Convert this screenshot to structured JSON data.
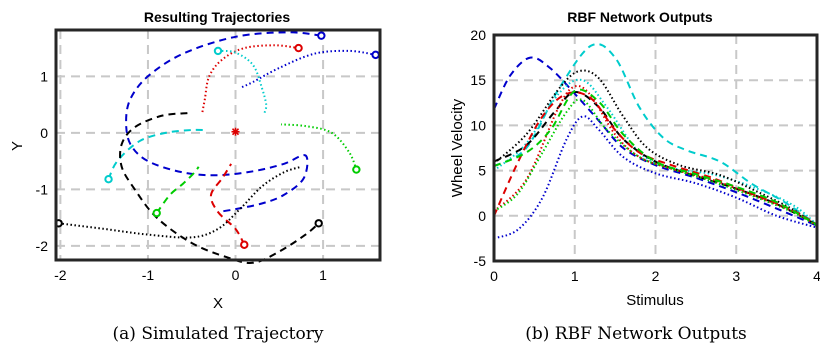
{
  "captions": {
    "a": "(a) Simulated Trajectory",
    "b": "(b) RBF Network Outputs"
  },
  "chart_data": [
    {
      "type": "line",
      "title": "Resulting Trajectories",
      "xlabel": "X",
      "ylabel": "Y",
      "xlim": [
        -2.05,
        1.65
      ],
      "ylim": [
        -2.25,
        1.82
      ],
      "xticks": [
        -2,
        -1,
        0,
        1
      ],
      "yticks": [
        -2,
        -1,
        0,
        1
      ],
      "grid": true,
      "center_marker": [
        0,
        0.02
      ],
      "series": [
        {
          "color": "#0000cc",
          "style": "dashed",
          "points": [
            [
              0.98,
              1.72
            ],
            [
              0.6,
              1.78
            ],
            [
              0.0,
              1.7
            ],
            [
              -0.6,
              1.4
            ],
            [
              -1.0,
              1.0
            ],
            [
              -1.2,
              0.6
            ],
            [
              -1.25,
              0.2
            ],
            [
              -1.2,
              -0.2
            ],
            [
              -1.0,
              -0.5
            ],
            [
              -0.6,
              -0.7
            ],
            [
              -0.2,
              -0.75
            ],
            [
              0.2,
              -0.68
            ],
            [
              0.55,
              -0.55
            ],
            [
              0.8,
              -0.4
            ],
            [
              0.78,
              -0.8
            ],
            [
              0.55,
              -1.1
            ],
            [
              0.3,
              -1.25
            ],
            [
              0.0,
              -1.35
            ],
            [
              -0.2,
              -1.4
            ]
          ],
          "end": "start"
        },
        {
          "color": "#0000cc",
          "style": "dotted",
          "points": [
            [
              1.6,
              1.38
            ],
            [
              1.3,
              1.45
            ],
            [
              0.9,
              1.4
            ],
            [
              0.5,
              1.15
            ],
            [
              0.2,
              0.9
            ],
            [
              0.06,
              0.8
            ]
          ],
          "end": "start"
        },
        {
          "color": "#dd0000",
          "style": "dotted",
          "points": [
            [
              0.72,
              1.5
            ],
            [
              0.45,
              1.55
            ],
            [
              0.1,
              1.5
            ],
            [
              -0.15,
              1.3
            ],
            [
              -0.3,
              1.0
            ],
            [
              -0.35,
              0.6
            ],
            [
              -0.38,
              0.35
            ]
          ],
          "end": "start"
        },
        {
          "color": "#dd0000",
          "style": "dashed",
          "points": [
            [
              0.1,
              -1.98
            ],
            [
              0.0,
              -1.7
            ],
            [
              -0.2,
              -1.4
            ],
            [
              -0.28,
              -1.1
            ],
            [
              -0.15,
              -0.8
            ],
            [
              -0.05,
              -0.55
            ]
          ],
          "end": "start"
        },
        {
          "color": "#00cccc",
          "style": "dotted",
          "points": [
            [
              -0.2,
              1.45
            ],
            [
              0.0,
              1.42
            ],
            [
              0.2,
              1.2
            ],
            [
              0.3,
              0.8
            ],
            [
              0.35,
              0.5
            ],
            [
              0.33,
              0.35
            ]
          ],
          "end": "start"
        },
        {
          "color": "#00cccc",
          "style": "dashed",
          "points": [
            [
              -1.45,
              -0.82
            ],
            [
              -1.35,
              -0.5
            ],
            [
              -1.1,
              -0.15
            ],
            [
              -0.8,
              0.0
            ],
            [
              -0.5,
              0.05
            ],
            [
              -0.35,
              0.05
            ]
          ],
          "end": "start"
        },
        {
          "color": "#000000",
          "style": "dashed",
          "points": [
            [
              -0.55,
              0.35
            ],
            [
              -0.85,
              0.3
            ],
            [
              -1.15,
              0.1
            ],
            [
              -1.3,
              -0.2
            ],
            [
              -1.3,
              -0.6
            ],
            [
              -1.15,
              -1.0
            ],
            [
              -0.9,
              -1.5
            ],
            [
              -0.5,
              -1.95
            ],
            [
              -0.1,
              -2.2
            ],
            [
              0.2,
              -2.3
            ],
            [
              0.5,
              -2.1
            ],
            [
              0.8,
              -1.8
            ],
            [
              0.95,
              -1.6
            ]
          ],
          "end": "end"
        },
        {
          "color": "#000000",
          "style": "dotted",
          "points": [
            [
              -2.02,
              -1.6
            ],
            [
              -1.5,
              -1.7
            ],
            [
              -1.0,
              -1.8
            ],
            [
              -0.5,
              -1.85
            ],
            [
              -0.2,
              -1.7
            ],
            [
              0.05,
              -1.35
            ],
            [
              0.3,
              -0.95
            ],
            [
              0.55,
              -0.7
            ],
            [
              0.75,
              -0.6
            ]
          ],
          "end": "start"
        },
        {
          "color": "#00cc00",
          "style": "dashed",
          "points": [
            [
              -0.9,
              -1.42
            ],
            [
              -0.75,
              -1.1
            ],
            [
              -0.6,
              -0.9
            ],
            [
              -0.48,
              -0.72
            ],
            [
              -0.42,
              -0.6
            ]
          ],
          "end": "start"
        },
        {
          "color": "#00cc00",
          "style": "dotted",
          "points": [
            [
              1.38,
              -0.65
            ],
            [
              1.3,
              -0.35
            ],
            [
              1.1,
              0.0
            ],
            [
              0.8,
              0.12
            ],
            [
              0.52,
              0.15
            ]
          ],
          "end": "start"
        }
      ]
    },
    {
      "type": "line",
      "title": "RBF Network Outputs",
      "xlabel": "Stimulus",
      "ylabel": "Wheel Velocity",
      "xlim": [
        0,
        4
      ],
      "ylim": [
        -5,
        20
      ],
      "xticks": [
        0,
        1,
        2,
        3,
        4
      ],
      "yticks": [
        -5,
        0,
        5,
        10,
        15,
        20
      ],
      "grid": true,
      "series": [
        {
          "color": "#0000cc",
          "style": "dashed",
          "points": [
            [
              0,
              11.8
            ],
            [
              0.2,
              15.5
            ],
            [
              0.45,
              17.5
            ],
            [
              0.7,
              16.3
            ],
            [
              1.0,
              13.5
            ],
            [
              1.3,
              10.5
            ],
            [
              1.6,
              7.5
            ],
            [
              2.0,
              5.6
            ],
            [
              2.5,
              4.2
            ],
            [
              3.0,
              2.6
            ],
            [
              3.5,
              0.8
            ],
            [
              4.0,
              -1.1
            ]
          ]
        },
        {
          "color": "#0000cc",
          "style": "dotted",
          "points": [
            [
              0,
              -2.5
            ],
            [
              0.3,
              -1.5
            ],
            [
              0.6,
              2.0
            ],
            [
              0.9,
              8.5
            ],
            [
              1.1,
              11.0
            ],
            [
              1.3,
              9.5
            ],
            [
              1.6,
              6.5
            ],
            [
              2.0,
              4.7
            ],
            [
              2.5,
              3.6
            ],
            [
              3.0,
              2.0
            ],
            [
              3.5,
              0.0
            ],
            [
              4.0,
              -1.3
            ]
          ]
        },
        {
          "color": "#00cccc",
          "style": "dashed",
          "points": [
            [
              0,
              5.5
            ],
            [
              0.4,
              7.5
            ],
            [
              0.8,
              14.0
            ],
            [
              1.2,
              18.8
            ],
            [
              1.5,
              17.5
            ],
            [
              1.8,
              12.0
            ],
            [
              2.1,
              8.6
            ],
            [
              2.4,
              7.2
            ],
            [
              2.8,
              6.0
            ],
            [
              3.2,
              3.5
            ],
            [
              3.6,
              1.5
            ],
            [
              4.0,
              -1.0
            ]
          ]
        },
        {
          "color": "#00cccc",
          "style": "dotted",
          "points": [
            [
              0,
              5.0
            ],
            [
              0.4,
              8.0
            ],
            [
              0.8,
              13.5
            ],
            [
              1.1,
              15.0
            ],
            [
              1.4,
              12.0
            ],
            [
              1.8,
              7.0
            ],
            [
              2.2,
              5.3
            ],
            [
              2.7,
              4.6
            ],
            [
              3.2,
              3.2
            ],
            [
              3.7,
              1.2
            ],
            [
              4.0,
              -1.0
            ]
          ]
        },
        {
          "color": "#000000",
          "style": "dashed",
          "points": [
            [
              0,
              6.0
            ],
            [
              0.4,
              7.8
            ],
            [
              0.75,
              11.5
            ],
            [
              1.0,
              13.7
            ],
            [
              1.3,
              12.0
            ],
            [
              1.6,
              8.5
            ],
            [
              2.0,
              6.0
            ],
            [
              2.5,
              4.4
            ],
            [
              3.0,
              3.0
            ],
            [
              3.5,
              1.3
            ],
            [
              4.0,
              -1.0
            ]
          ]
        },
        {
          "color": "#000000",
          "style": "dotted",
          "points": [
            [
              0,
              5.8
            ],
            [
              0.4,
              9.0
            ],
            [
              0.8,
              14.0
            ],
            [
              1.05,
              16.0
            ],
            [
              1.3,
              15.2
            ],
            [
              1.6,
              11.0
            ],
            [
              1.9,
              7.5
            ],
            [
              2.3,
              5.6
            ],
            [
              2.8,
              4.5
            ],
            [
              3.3,
              2.5
            ],
            [
              3.7,
              0.7
            ],
            [
              4.0,
              -1.1
            ]
          ]
        },
        {
          "color": "#dd0000",
          "style": "dashed",
          "points": [
            [
              0,
              0.0
            ],
            [
              0.3,
              6.0
            ],
            [
              0.6,
              11.0
            ],
            [
              0.9,
              13.5
            ],
            [
              1.2,
              13.0
            ],
            [
              1.5,
              9.5
            ],
            [
              1.8,
              7.0
            ],
            [
              2.2,
              5.6
            ],
            [
              2.7,
              4.2
            ],
            [
              3.2,
              2.4
            ],
            [
              3.7,
              0.6
            ],
            [
              4.0,
              -1.0
            ]
          ]
        },
        {
          "color": "#dd0000",
          "style": "dotted",
          "points": [
            [
              0,
              0.5
            ],
            [
              0.4,
              4.0
            ],
            [
              0.8,
              12.0
            ],
            [
              1.0,
              14.3
            ],
            [
              1.2,
              13.3
            ],
            [
              1.5,
              9.0
            ],
            [
              1.8,
              6.5
            ],
            [
              2.2,
              5.2
            ],
            [
              2.7,
              4.0
            ],
            [
              3.2,
              2.3
            ],
            [
              3.7,
              0.5
            ],
            [
              4.0,
              -1.1
            ]
          ]
        },
        {
          "color": "#00cc00",
          "style": "dashed",
          "points": [
            [
              0,
              5.5
            ],
            [
              0.4,
              7.0
            ],
            [
              0.7,
              9.5
            ],
            [
              1.0,
              13.8
            ],
            [
              1.3,
              12.6
            ],
            [
              1.6,
              9.0
            ],
            [
              2.0,
              6.0
            ],
            [
              2.5,
              4.6
            ],
            [
              3.0,
              3.2
            ],
            [
              3.5,
              1.5
            ],
            [
              4.0,
              -1.0
            ]
          ]
        },
        {
          "color": "#00cc00",
          "style": "dotted",
          "points": [
            [
              0,
              0.5
            ],
            [
              0.3,
              2.5
            ],
            [
              0.6,
              7.0
            ],
            [
              0.9,
              11.5
            ],
            [
              1.1,
              12.8
            ],
            [
              1.4,
              9.5
            ],
            [
              1.8,
              6.5
            ],
            [
              2.2,
              5.2
            ],
            [
              2.7,
              3.8
            ],
            [
              3.2,
              2.2
            ],
            [
              3.7,
              0.4
            ],
            [
              4.0,
              -1.1
            ]
          ]
        }
      ]
    }
  ]
}
